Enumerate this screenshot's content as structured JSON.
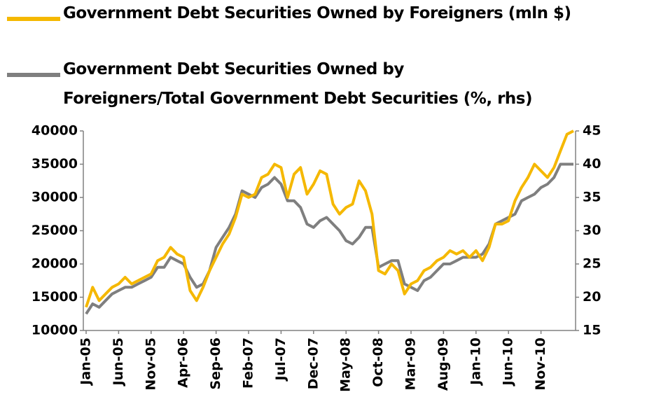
{
  "chart_data": {
    "type": "line",
    "categories": [
      "Jan-05",
      null,
      null,
      null,
      null,
      "Jun-05",
      null,
      null,
      null,
      null,
      "Nov-05",
      null,
      null,
      null,
      null,
      "Apr-06",
      null,
      null,
      null,
      null,
      "Sep-06",
      null,
      null,
      null,
      null,
      "Feb-07",
      null,
      null,
      null,
      null,
      "Jul-07",
      null,
      null,
      null,
      null,
      "Dec-07",
      null,
      null,
      null,
      null,
      "May-08",
      null,
      null,
      null,
      null,
      "Oct-08",
      null,
      null,
      null,
      null,
      "Mar-09",
      null,
      null,
      null,
      null,
      "Aug-09",
      null,
      null,
      null,
      null,
      "Jan-10",
      null,
      null,
      null,
      null,
      "Jun-10",
      null,
      null,
      null,
      null,
      "Nov-10",
      null,
      null,
      null,
      null,
      null
    ],
    "series": [
      {
        "name": "Government Debt Securities Owned by Foreigners (mln $)",
        "color": "#f5b800",
        "values": [
          13500,
          16500,
          14500,
          15500,
          16500,
          17000,
          18000,
          17000,
          17500,
          18000,
          18500,
          20500,
          21000,
          22500,
          21500,
          21000,
          16000,
          14500,
          16500,
          19000,
          21000,
          23000,
          24500,
          27000,
          30500,
          30000,
          30500,
          33000,
          33500,
          35000,
          34500,
          30000,
          33500,
          34500,
          30500,
          32000,
          34000,
          33500,
          29000,
          27500,
          28500,
          29000,
          32500,
          31000,
          27500,
          19000,
          18500,
          20000,
          19000,
          15500,
          17000,
          17500,
          19000,
          19500,
          20500,
          21000,
          22000,
          21500,
          22000,
          21000,
          22000,
          20500,
          22500,
          26000,
          26000,
          26500,
          29500,
          31500,
          33000,
          35000,
          34000,
          33000,
          34500,
          37000,
          39500,
          40000
        ]
      },
      {
        "name": "Government Debt Securities Owned by Foreigners/Total Government Debt Securities (%, rhs)",
        "color": "#7f7f7f",
        "axis": "y2",
        "values": [
          17.5,
          19,
          18.5,
          19.5,
          20.5,
          21,
          21.5,
          21.5,
          22,
          22.5,
          23,
          24.5,
          24.5,
          26,
          25.5,
          25,
          23,
          21.5,
          22,
          24,
          27.5,
          29,
          30.5,
          32.5,
          36,
          35.5,
          35,
          36.5,
          37,
          38,
          37,
          34.5,
          34.5,
          33.5,
          31,
          30.5,
          31.5,
          32,
          31,
          30,
          28.5,
          28,
          29,
          30.5,
          30.5,
          24.5,
          25,
          25.5,
          25.5,
          22,
          21.5,
          21,
          22.5,
          23,
          24,
          25,
          25,
          25.5,
          26,
          26,
          26,
          26.5,
          28,
          31,
          31.5,
          32,
          32.5,
          34.5,
          35,
          35.5,
          36.5,
          37,
          38,
          40,
          40,
          40
        ]
      }
    ],
    "ylim": [
      10000,
      40000
    ],
    "yticks": [
      10000,
      15000,
      20000,
      25000,
      30000,
      35000,
      40000
    ],
    "y2lim": [
      15,
      45
    ],
    "y2ticks": [
      15,
      20,
      25,
      30,
      35,
      40,
      45
    ]
  }
}
